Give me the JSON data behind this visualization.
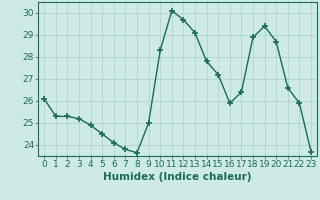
{
  "x": [
    0,
    1,
    2,
    3,
    4,
    5,
    6,
    7,
    8,
    9,
    10,
    11,
    12,
    13,
    14,
    15,
    16,
    17,
    18,
    19,
    20,
    21,
    22,
    23
  ],
  "y": [
    26.1,
    25.3,
    25.3,
    25.2,
    24.9,
    24.5,
    24.1,
    23.8,
    23.65,
    25.0,
    28.3,
    30.1,
    29.7,
    29.1,
    27.8,
    27.2,
    25.9,
    26.4,
    28.9,
    29.4,
    28.7,
    26.6,
    25.9,
    23.7
  ],
  "line_color": "#1a6b5a",
  "marker": "+",
  "marker_size": 5,
  "bg_color": "#cdeae5",
  "grid_color": "#b0d4ce",
  "xlabel": "Humidex (Indice chaleur)",
  "ylim": [
    23.5,
    30.5
  ],
  "xlim": [
    -0.5,
    23.5
  ],
  "yticks": [
    24,
    25,
    26,
    27,
    28,
    29,
    30
  ],
  "xticks": [
    0,
    1,
    2,
    3,
    4,
    5,
    6,
    7,
    8,
    9,
    10,
    11,
    12,
    13,
    14,
    15,
    16,
    17,
    18,
    19,
    20,
    21,
    22,
    23
  ],
  "xlabel_fontsize": 7.5,
  "tick_fontsize": 6.5,
  "line_width": 1.0
}
